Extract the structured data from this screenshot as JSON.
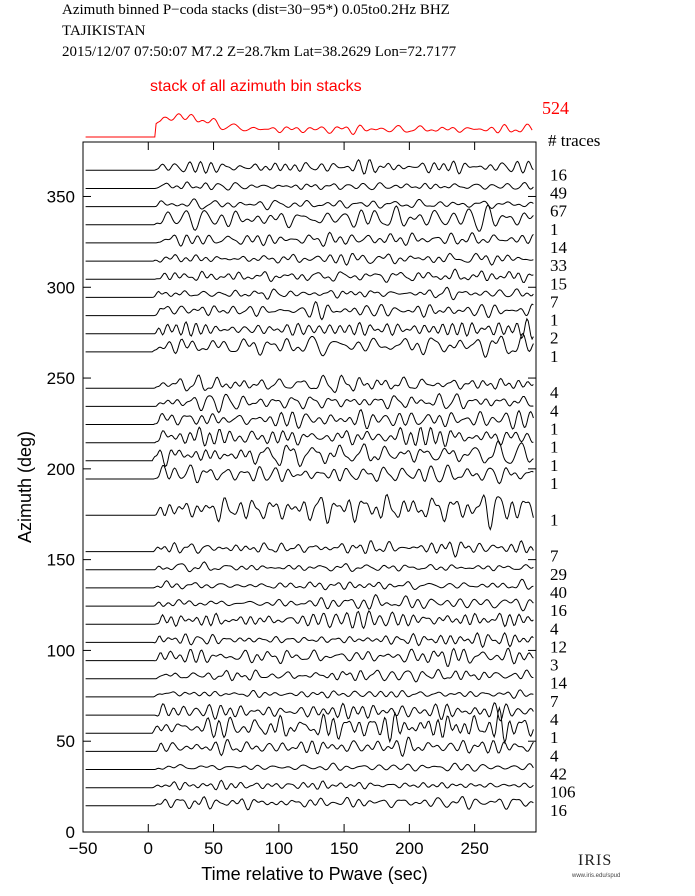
{
  "header": {
    "line1": "Azimuth binned P−coda stacks (dist=30−95*)  0.05to0.2Hz  BHZ",
    "line2": "TAJIKISTAN",
    "line3": "2015/12/07  07:50:07  M7.2  Z=28.7km Lat=38.2629 Lon=72.7177"
  },
  "logo": {
    "text": "IRIS",
    "url": "www.iris.edu/spud"
  },
  "chart_data": {
    "type": "line",
    "title": "",
    "xlabel": "Time relative to Pwave (sec)",
    "ylabel": "Azimuth (deg)",
    "xlim": [
      -50,
      297
    ],
    "ylim": [
      0,
      380
    ],
    "xticks": [
      -50,
      0,
      50,
      100,
      150,
      200,
      250
    ],
    "yticks": [
      0,
      50,
      100,
      150,
      200,
      250,
      300,
      350
    ],
    "grid": false,
    "summary_trace": {
      "label": "stack of all azimuth bin stacks",
      "traces": "524",
      "color": "#ff0000"
    },
    "traces_header": "# traces",
    "series": [
      {
        "azimuth": 10,
        "traces": "16"
      },
      {
        "azimuth": 20,
        "traces": "106"
      },
      {
        "azimuth": 30,
        "traces": "42"
      },
      {
        "azimuth": 40,
        "traces": "4"
      },
      {
        "azimuth": 50,
        "traces": "1"
      },
      {
        "azimuth": 60,
        "traces": "4"
      },
      {
        "azimuth": 70,
        "traces": "7"
      },
      {
        "azimuth": 80,
        "traces": "14"
      },
      {
        "azimuth": 90,
        "traces": "3"
      },
      {
        "azimuth": 100,
        "traces": "12"
      },
      {
        "azimuth": 110,
        "traces": "4"
      },
      {
        "azimuth": 120,
        "traces": "16"
      },
      {
        "azimuth": 130,
        "traces": "40"
      },
      {
        "azimuth": 140,
        "traces": "29"
      },
      {
        "azimuth": 150,
        "traces": "7"
      },
      {
        "azimuth": 170,
        "traces": "1"
      },
      {
        "azimuth": 190,
        "traces": "1"
      },
      {
        "azimuth": 200,
        "traces": "1"
      },
      {
        "azimuth": 210,
        "traces": "1"
      },
      {
        "azimuth": 220,
        "traces": "1"
      },
      {
        "azimuth": 230,
        "traces": "4"
      },
      {
        "azimuth": 240,
        "traces": "4"
      },
      {
        "azimuth": 260,
        "traces": "1"
      },
      {
        "azimuth": 270,
        "traces": "2"
      },
      {
        "azimuth": 280,
        "traces": "1"
      },
      {
        "azimuth": 290,
        "traces": "7"
      },
      {
        "azimuth": 300,
        "traces": "15"
      },
      {
        "azimuth": 310,
        "traces": "33"
      },
      {
        "azimuth": 320,
        "traces": "14"
      },
      {
        "azimuth": 330,
        "traces": "1"
      },
      {
        "azimuth": 340,
        "traces": "67"
      },
      {
        "azimuth": 350,
        "traces": "49"
      },
      {
        "azimuth": 360,
        "traces": "16"
      }
    ]
  }
}
